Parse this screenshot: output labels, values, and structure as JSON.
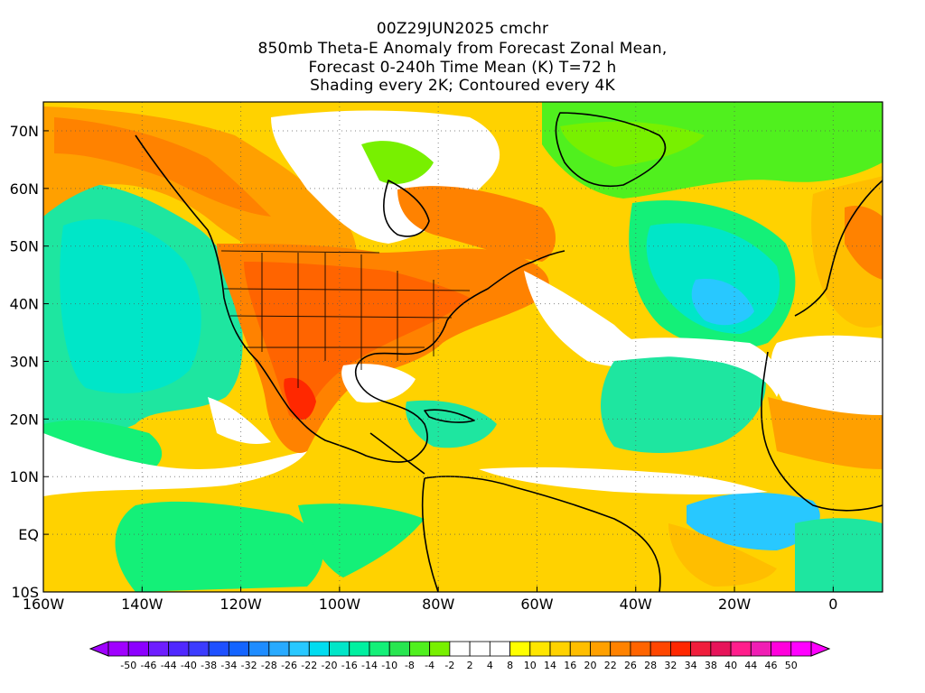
{
  "title": {
    "line1": "00Z29JUN2025 cmchr",
    "line2": "850mb Theta-E Anomaly from Forecast Zonal Mean,",
    "line3": "Forecast 0-240h Time Mean (K) T=72 h",
    "line4": "Shading every 2K; Contoured every 4K"
  },
  "map": {
    "lon_range": [
      -160,
      10
    ],
    "lat_range": [
      -10,
      75
    ],
    "x_ticks": [
      "160W",
      "140W",
      "120W",
      "100W",
      "80W",
      "60W",
      "40W",
      "20W",
      "0"
    ],
    "x_tick_values": [
      -160,
      -140,
      -120,
      -100,
      -80,
      -60,
      -40,
      -20,
      0
    ],
    "y_ticks": [
      "70N",
      "60N",
      "50N",
      "40N",
      "30N",
      "20N",
      "10N",
      "EQ",
      "10S"
    ],
    "y_tick_values": [
      70,
      60,
      50,
      40,
      30,
      20,
      10,
      0,
      -10
    ],
    "gridlines": "dotted"
  },
  "colorbar": {
    "labels": [
      "-50",
      "-46",
      "-44",
      "-40",
      "-38",
      "-34",
      "-32",
      "-28",
      "-26",
      "-22",
      "-20",
      "-16",
      "-14",
      "-10",
      "-8",
      "-4",
      "-2",
      "2",
      "4",
      "8",
      "10",
      "14",
      "16",
      "20",
      "22",
      "26",
      "28",
      "32",
      "34",
      "38",
      "40",
      "44",
      "46",
      "50"
    ],
    "colors": [
      "#a000ff",
      "#8c00ff",
      "#6e1eff",
      "#5028ff",
      "#3c3cff",
      "#1e50ff",
      "#1464ff",
      "#1e8cff",
      "#28aaff",
      "#28c8ff",
      "#00dcf0",
      "#00e6c8",
      "#00f0a0",
      "#14f078",
      "#28e650",
      "#50f01e",
      "#78f000",
      "#ffffff",
      "#ffffff",
      "#ffffff",
      "#ffff00",
      "#ffe600",
      "#ffd200",
      "#ffbe00",
      "#ffa000",
      "#ff8200",
      "#ff6400",
      "#ff4600",
      "#ff2800",
      "#f01e3c",
      "#e6145a",
      "#ff1e8c",
      "#f01eb4",
      "#ff00dc",
      "#ff00ff"
    ],
    "extend": "both"
  },
  "legend_colors": {
    "ocean_cool": "#1ee6a0",
    "ocean_warm": "#ffd200",
    "land_hot": "#ff8200",
    "neutral": "#ffffff"
  }
}
